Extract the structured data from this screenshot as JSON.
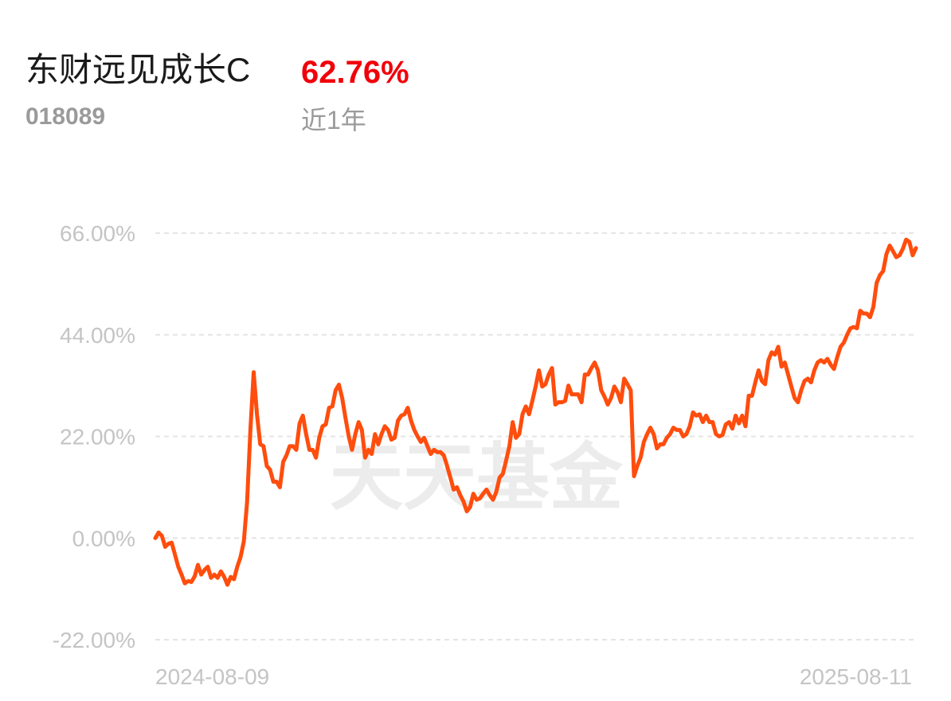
{
  "chart_data": {
    "type": "line",
    "title": "东财远见成长C",
    "code": "018089",
    "period_return": "62.76%",
    "period": "近1年",
    "watermark": "天天基金",
    "categories": [
      "2024-08-09",
      null,
      null,
      null,
      null,
      null,
      null,
      null,
      null,
      null,
      null,
      null,
      null,
      null,
      null,
      null,
      null,
      null,
      null,
      null,
      null,
      null,
      null,
      null,
      null,
      null,
      null,
      null,
      null,
      null,
      null,
      null,
      null,
      null,
      null,
      null,
      null,
      null,
      null,
      null,
      null,
      null,
      null,
      null,
      null,
      null,
      null,
      null,
      null,
      null,
      null,
      null,
      null,
      null,
      null,
      null,
      null,
      null,
      null,
      null,
      null,
      null,
      null,
      null,
      null,
      null,
      null,
      null,
      null,
      null,
      null,
      null,
      null,
      null,
      null,
      null,
      null,
      null,
      null,
      null,
      null,
      null,
      null,
      null,
      null,
      null,
      null,
      null,
      null,
      null,
      null,
      null,
      null,
      null,
      null,
      null,
      null,
      null,
      null,
      null,
      null,
      null,
      null,
      null,
      null,
      null,
      null,
      null,
      null,
      null,
      null,
      null,
      null,
      null,
      null,
      null,
      null,
      null,
      null,
      null,
      null,
      null,
      null,
      null,
      null,
      null,
      null,
      null,
      null,
      null,
      null,
      null,
      null,
      null,
      null,
      null,
      null,
      null,
      null,
      null,
      null,
      null,
      null,
      null,
      null,
      null,
      null,
      null,
      null,
      null,
      null,
      null,
      null,
      null,
      null,
      null,
      null,
      null,
      null,
      null,
      null,
      null,
      null,
      null,
      null,
      null,
      null,
      null,
      null,
      null,
      null,
      null,
      null,
      null,
      null,
      null,
      null,
      null,
      null,
      null,
      null,
      null,
      null,
      null,
      null,
      null,
      null,
      null,
      null,
      null,
      null,
      null,
      null,
      null,
      null,
      null,
      null,
      null,
      null,
      null,
      null,
      null,
      null,
      null,
      null,
      null,
      null,
      null,
      null,
      null,
      null,
      null,
      null,
      null,
      null,
      null,
      null,
      null,
      null,
      null,
      null,
      null,
      null,
      null,
      null,
      null,
      null,
      null,
      null,
      null,
      null,
      null,
      "2025-08-11"
    ],
    "series": [
      {
        "color": "#ff4d0d",
        "values": [
          0,
          1.2,
          0.5,
          -1.9,
          -1.2,
          -1.0,
          -3.6,
          -6.2,
          -7.9,
          -9.8,
          -9.3,
          -9.5,
          -8.3,
          -5.8,
          -7.9,
          -6.9,
          -6.2,
          -8.6,
          -7.9,
          -8.6,
          -7.2,
          -8.4,
          -10.1,
          -8.4,
          -8.9,
          -6.2,
          -4.1,
          -0.7,
          7.9,
          23.4,
          35.9,
          26.8,
          20.3,
          19.9,
          15.6,
          14.8,
          12.2,
          12.2,
          11.0,
          16.5,
          17.9,
          19.9,
          19.9,
          19.1,
          24.8,
          26.5,
          22.5,
          19.1,
          19.1,
          17.4,
          21.7,
          24.2,
          24.6,
          28.2,
          28.5,
          32.0,
          33.2,
          30.3,
          26.0,
          22.0,
          19.1,
          22.5,
          25.1,
          23.4,
          17.4,
          19.1,
          18.2,
          22.5,
          20.3,
          22.5,
          24.2,
          23.4,
          21.3,
          21.7,
          25.4,
          26.5,
          26.8,
          28.2,
          25.4,
          23.4,
          22.0,
          20.8,
          21.7,
          19.9,
          18.2,
          19.1,
          18.6,
          18.6,
          17.9,
          15.6,
          13.1,
          10.5,
          11.0,
          9.3,
          7.9,
          5.8,
          6.7,
          9.6,
          8.3,
          8.6,
          9.6,
          10.5,
          9.3,
          8.3,
          10.0,
          13.1,
          13.9,
          16.8,
          19.9,
          25.1,
          21.7,
          22.5,
          26.8,
          28.5,
          26.8,
          29.7,
          32.8,
          36.3,
          32.8,
          33.3,
          35.4,
          36.8,
          28.9,
          29.4,
          29.4,
          29.7,
          33.0,
          31.1,
          31.1,
          31.1,
          29.4,
          35.4,
          35.4,
          36.8,
          38.0,
          36.3,
          32.0,
          30.6,
          28.9,
          30.3,
          32.8,
          31.6,
          29.4,
          34.5,
          33.3,
          32.0,
          13.4,
          15.6,
          17.4,
          20.8,
          22.5,
          23.9,
          22.5,
          19.4,
          20.3,
          20.3,
          21.7,
          22.5,
          23.9,
          23.4,
          23.4,
          22.0,
          22.5,
          24.2,
          27.2,
          26.5,
          26.8,
          25.1,
          26.5,
          25.1,
          25.1,
          22.5,
          22.0,
          22.3,
          24.6,
          25.1,
          23.7,
          26.5,
          24.8,
          26.5,
          24.2,
          30.8,
          30.8,
          33.7,
          36.3,
          34.0,
          33.3,
          38.5,
          40.2,
          39.7,
          41.4,
          37.1,
          38.0,
          35.4,
          32.8,
          30.3,
          29.4,
          32.0,
          34.0,
          34.5,
          33.7,
          36.3,
          38.0,
          38.5,
          38.0,
          38.8,
          37.5,
          36.6,
          39.2,
          41.4,
          42.3,
          44.0,
          45.4,
          45.7,
          45.4,
          49.2,
          48.6,
          48.6,
          47.8,
          50.0,
          55.2,
          56.9,
          57.8,
          61.5,
          63.3,
          62.1,
          60.8,
          61.2,
          62.6,
          64.6,
          64.1,
          61.2,
          62.76
        ]
      }
    ],
    "ylim": [
      -22,
      66
    ],
    "yticks": [
      {
        "value": -22,
        "label": "-22.00%"
      },
      {
        "value": 0,
        "label": "0.00%"
      },
      {
        "value": 22,
        "label": "22.00%"
      },
      {
        "value": 44,
        "label": "44.00%"
      },
      {
        "value": 66,
        "label": "66.00%"
      }
    ],
    "grid": true
  }
}
